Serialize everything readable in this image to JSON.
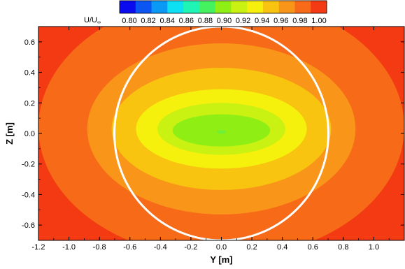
{
  "chart_data": {
    "type": "heatmap",
    "title": "",
    "xlabel": "Y [m]",
    "ylabel": "Z [m]",
    "xlim": [
      -1.2,
      1.2
    ],
    "ylim": [
      -0.7,
      0.7
    ],
    "x_ticks": [
      "-1.2",
      "-1.0",
      "-0.8",
      "-0.6",
      "-0.4",
      "-0.2",
      "0.0",
      "0.2",
      "0.4",
      "0.6",
      "0.8",
      "1.0"
    ],
    "y_ticks": [
      "0.6",
      "0.4",
      "0.2",
      "0.0",
      "-0.2",
      "-0.4",
      "-0.6"
    ],
    "grid": false,
    "legend": {
      "label_main": "U/U",
      "label_sub": "∞",
      "placement": "top",
      "levels": [
        "0.80",
        "0.82",
        "0.84",
        "0.86",
        "0.88",
        "0.90",
        "0.92",
        "0.94",
        "0.96",
        "0.98",
        "1.00"
      ],
      "colors": [
        "#0b0bef",
        "#0b55f2",
        "#0a9af6",
        "#0ee0f3",
        "#1ef5b5",
        "#45f15e",
        "#8fef15",
        "#c9f111",
        "#f5f10d",
        "#f8c410",
        "#f9961a",
        "#f76a18",
        "#f33a12"
      ]
    },
    "contours": [
      {
        "level": "0.98",
        "color": "#f76a18",
        "cx": 0.0,
        "cz": 0.04,
        "ry": 1.2,
        "rz": 0.86
      },
      {
        "level": "0.96",
        "color": "#f9961a",
        "cx": 0.0,
        "cz": 0.03,
        "ry": 0.88,
        "rz": 0.56
      },
      {
        "level": "0.94",
        "color": "#f8c410",
        "cx": 0.0,
        "cz": 0.03,
        "ry": 0.72,
        "rz": 0.4
      },
      {
        "level": "0.92",
        "color": "#f5f10d",
        "cx": 0.0,
        "cz": 0.03,
        "ry": 0.56,
        "rz": 0.26
      },
      {
        "level": "0.90",
        "color": "#c9f111",
        "cx": 0.0,
        "cz": 0.03,
        "ry": 0.42,
        "rz": 0.17
      },
      {
        "level": "0.88",
        "color": "#8fef15",
        "cx": 0.0,
        "cz": 0.02,
        "ry": 0.32,
        "rz": 0.105
      },
      {
        "level": "0.86",
        "color": "#6fef35",
        "cx": 0.0,
        "cz": 0.01,
        "ry": 0.03,
        "rz": 0.012
      }
    ],
    "background_color": "#f33a12",
    "circle": {
      "cy": 0.0,
      "cz": 0.0,
      "r": 0.7,
      "color": "#ffffff"
    }
  }
}
